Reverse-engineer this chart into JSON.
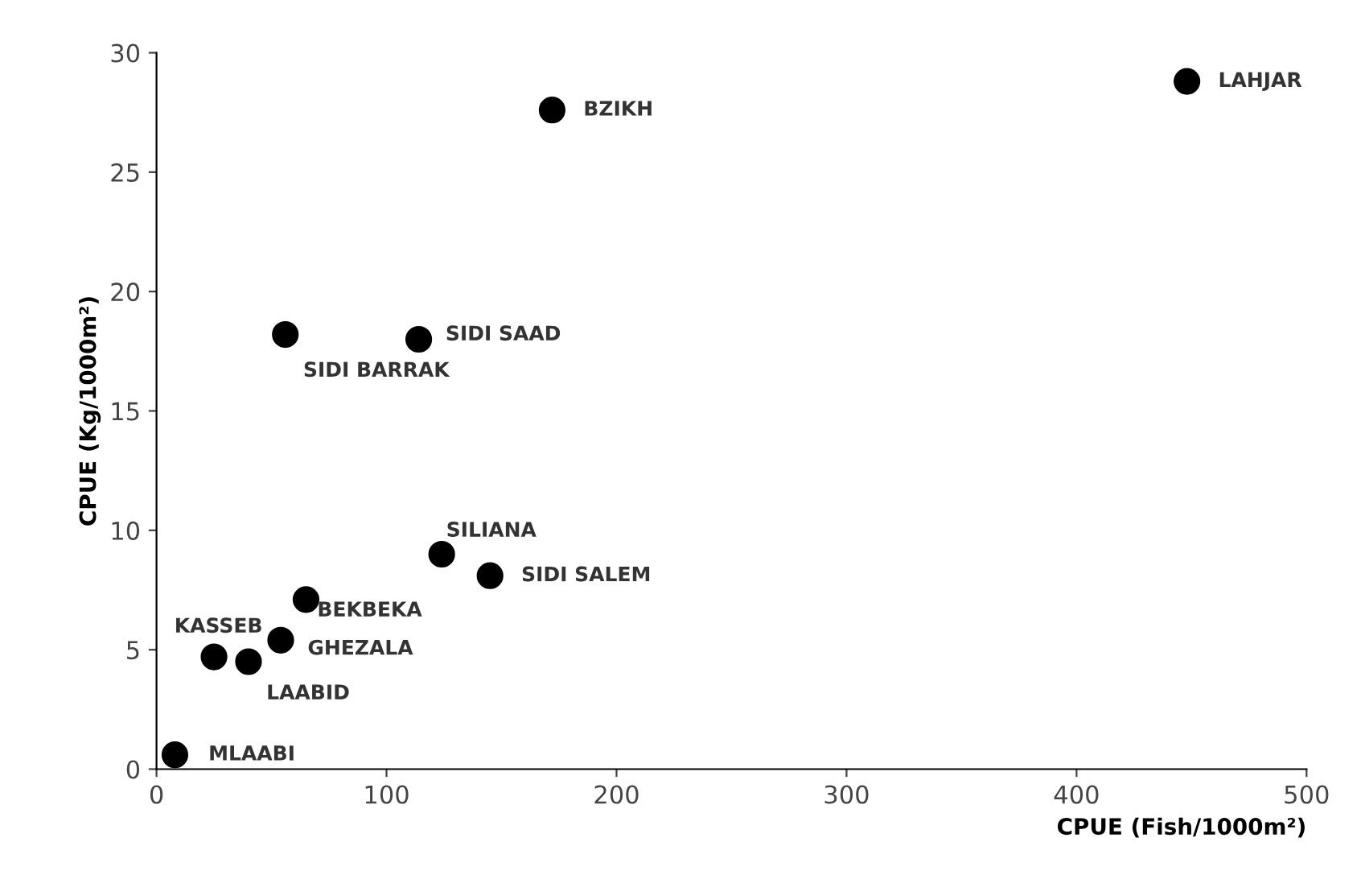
{
  "chart_data": {
    "type": "scatter",
    "xlabel": "CPUE (Fish/1000m²)",
    "ylabel": "CPUE (Kg/1000m²)",
    "x": [
      8,
      25,
      40,
      54,
      65,
      56,
      114,
      124,
      145,
      172,
      448
    ],
    "series": [
      {
        "color": "#000000",
        "values": [
          0.6,
          4.7,
          4.5,
          5.4,
          7.1,
          18.2,
          18.0,
          9.0,
          8.1,
          27.6,
          28.8
        ]
      }
    ],
    "annotations": [
      {
        "text": "MLAABI",
        "x": 8,
        "y": 0.6
      },
      {
        "text": "KASSEB",
        "x": 25,
        "y": 4.7
      },
      {
        "text": "LAABID",
        "x": 40,
        "y": 4.5
      },
      {
        "text": "GHEZALA",
        "x": 54,
        "y": 5.4
      },
      {
        "text": "BEKBEKA",
        "x": 65,
        "y": 7.1
      },
      {
        "text": "SIDI BARRAK",
        "x": 56,
        "y": 18.2
      },
      {
        "text": "SIDI SAAD",
        "x": 114,
        "y": 18.0
      },
      {
        "text": "SILIANA",
        "x": 124,
        "y": 9.0
      },
      {
        "text": "SIDI SALEM",
        "x": 145,
        "y": 8.1
      },
      {
        "text": "BZIKH",
        "x": 172,
        "y": 27.6
      },
      {
        "text": "LAHJAR",
        "x": 448,
        "y": 28.8
      }
    ],
    "xlim": [
      0,
      500
    ],
    "xticks": [
      0,
      100,
      200,
      300,
      400,
      500
    ],
    "ylim": [
      0,
      30
    ],
    "yticks": [
      0,
      5,
      10,
      15,
      20,
      25,
      30
    ],
    "grid": false,
    "legend": false,
    "marker": "circle"
  }
}
